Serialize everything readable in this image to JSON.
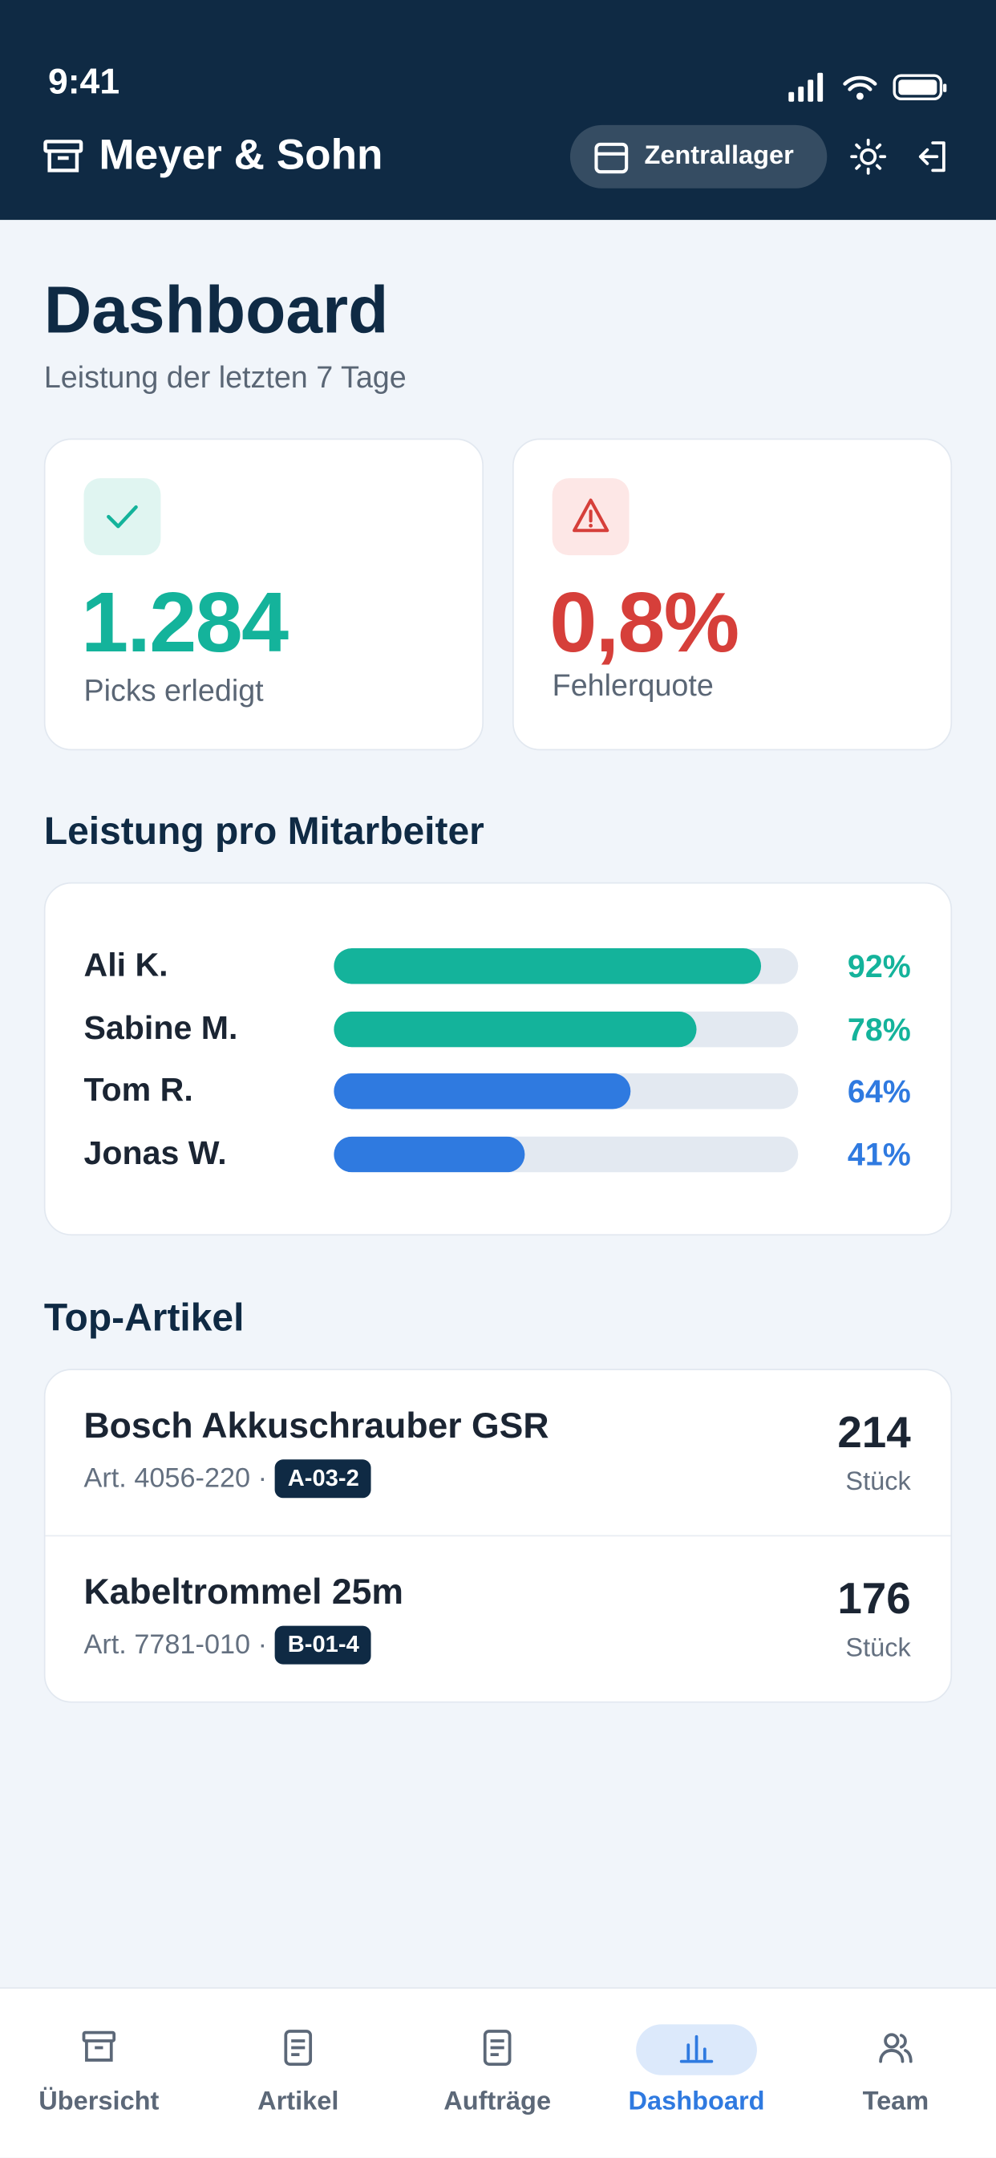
{
  "status": {
    "time": "9:41"
  },
  "header": {
    "brand": "Meyer & Sohn",
    "warehouse": "Zentrallager"
  },
  "page": {
    "title": "Dashboard",
    "subtitle": "Leistung der letzten 7 Tage"
  },
  "kpis": [
    {
      "value": "1.284",
      "label": "Picks erledigt",
      "color": "#14b39b"
    },
    {
      "value": "0,8%",
      "label": "Fehlerquote",
      "color": "#d63f3a"
    }
  ],
  "performance": {
    "title": "Leistung pro Mitarbeiter",
    "max": 100,
    "rows": [
      {
        "name": "Ali K.",
        "value": 92,
        "label": "92%",
        "color": "#14b39b"
      },
      {
        "name": "Sabine M.",
        "value": 78,
        "label": "78%",
        "color": "#14b39b"
      },
      {
        "name": "Tom R.",
        "value": 64,
        "label": "64%",
        "color": "#2f7ae0"
      },
      {
        "name": "Jonas W.",
        "value": 41,
        "label": "41%",
        "color": "#2f7ae0"
      }
    ]
  },
  "top": {
    "title": "Top-Artikel",
    "items": [
      {
        "name": "Bosch Akkuschrauber GSR",
        "article": "Art. 4056-220 ·",
        "location": "A-03-2",
        "count": "214",
        "unit": "Stück"
      },
      {
        "name": "Kabeltrommel 25m",
        "article": "Art. 7781-010 ·",
        "location": "B-01-4",
        "count": "176",
        "unit": "Stück"
      }
    ]
  },
  "nav": {
    "active": 3,
    "items": [
      "Übersicht",
      "Artikel",
      "Aufträge",
      "Dashboard",
      "Team"
    ]
  }
}
